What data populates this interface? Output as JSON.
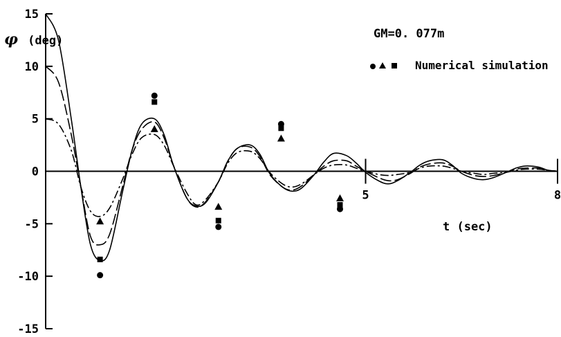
{
  "chart_data": {
    "type": "line",
    "title": "",
    "annotation": "GM=0. 077m",
    "legend_label": "Numerical simulation",
    "legend_position": "top-right",
    "ylabel_symbol": "φ",
    "ylabel_unit": "(deg)",
    "xlabel": "t (sec)",
    "xlim": [
      0,
      8
    ],
    "ylim": [
      -15,
      15
    ],
    "x_tick_labels": [
      {
        "value": 5,
        "label": "5"
      },
      {
        "value": 8,
        "label": "8"
      }
    ],
    "y_tick_labels": [
      {
        "value": 15,
        "label": "15"
      },
      {
        "value": 10,
        "label": "10"
      },
      {
        "value": 5,
        "label": "5"
      },
      {
        "value": 0,
        "label": "0"
      },
      {
        "value": -5,
        "label": "-5"
      },
      {
        "value": -10,
        "label": "-10"
      },
      {
        "value": -15,
        "label": "-15"
      }
    ],
    "grid": false,
    "series": [
      {
        "style": "solid",
        "x": [
          0,
          0.2,
          0.4,
          0.55,
          0.7,
          0.85,
          1.0,
          1.2,
          1.35,
          1.5,
          1.7,
          1.85,
          2.0,
          2.2,
          2.35,
          2.5,
          2.7,
          2.85,
          3.0,
          3.2,
          3.35,
          3.5,
          3.7,
          3.85,
          4.0,
          4.2,
          4.35,
          4.5,
          4.7,
          4.85,
          5.0,
          5.2,
          5.35,
          5.5,
          5.7,
          5.85,
          6.0,
          6.2,
          6.35,
          6.5,
          6.7,
          6.85,
          7.0,
          7.2,
          7.35,
          7.5,
          7.7,
          7.85,
          8.0
        ],
        "y": [
          15,
          12.5,
          5,
          -1.5,
          -7,
          -8.5,
          -7.5,
          -2,
          2,
          4.5,
          5,
          3.5,
          0.5,
          -2.5,
          -3.3,
          -3,
          -1,
          1,
          2.2,
          2.5,
          1.6,
          -0.2,
          -1.5,
          -1.9,
          -1.6,
          -0.3,
          0.9,
          1.7,
          1.5,
          0.8,
          -0.1,
          -0.9,
          -1.2,
          -0.9,
          -0.1,
          0.6,
          1.0,
          1.1,
          0.6,
          -0.2,
          -0.7,
          -0.8,
          -0.6,
          -0.1,
          0.3,
          0.5,
          0.4,
          0.1,
          0
        ]
      },
      {
        "style": "long-dash",
        "x": [
          0,
          0.2,
          0.4,
          0.55,
          0.7,
          0.85,
          1.0,
          1.2,
          1.35,
          1.5,
          1.7,
          1.85,
          2.0,
          2.2,
          2.35,
          2.5,
          2.7,
          2.85,
          3.0,
          3.2,
          3.35,
          3.5,
          3.7,
          3.85,
          4.0,
          4.2,
          4.35,
          4.5,
          4.7,
          4.85,
          5.0,
          5.2,
          5.35,
          5.5,
          5.7,
          5.85,
          6.0,
          6.2,
          6.35,
          6.5,
          6.7,
          6.85,
          7.0,
          7.2,
          7.35,
          7.5,
          7.7,
          7.85,
          8.0
        ],
        "y": [
          10,
          8.5,
          3.5,
          -1.5,
          -6.2,
          -7,
          -6,
          -1.5,
          2,
          4,
          4.7,
          3.2,
          0.5,
          -2.5,
          -3.4,
          -2.9,
          -1,
          1,
          2.2,
          2.3,
          1.4,
          -0.3,
          -1.5,
          -1.8,
          -1.4,
          -0.3,
          0.5,
          1.0,
          1.0,
          0.5,
          0,
          -0.6,
          -0.9,
          -0.8,
          -0.2,
          0.4,
          0.7,
          0.8,
          0.5,
          0,
          -0.4,
          -0.5,
          -0.4,
          -0.1,
          0.2,
          0.3,
          0.3,
          0.1,
          0
        ]
      },
      {
        "style": "dash-dot",
        "x": [
          0,
          0.2,
          0.4,
          0.55,
          0.7,
          0.85,
          1.0,
          1.2,
          1.35,
          1.5,
          1.7,
          1.85,
          2.0,
          2.2,
          2.35,
          2.5,
          2.7,
          2.85,
          3.0,
          3.2,
          3.35,
          3.5,
          3.7,
          3.85,
          4.0,
          4.2,
          4.35,
          4.5,
          4.7,
          4.85,
          5.0,
          5.2,
          5.35,
          5.5,
          5.7,
          5.85,
          6.0,
          6.2,
          6.35,
          6.5,
          6.7,
          6.85,
          7.0,
          7.2,
          7.35,
          7.5,
          7.7,
          7.85,
          8.0
        ],
        "y": [
          5,
          4.5,
          2,
          -1.5,
          -3.8,
          -4.3,
          -3.5,
          -0.8,
          1.6,
          3.2,
          3.5,
          2.5,
          0.5,
          -2,
          -3.2,
          -2.7,
          -1,
          0.8,
          1.8,
          1.9,
          1.2,
          -0.1,
          -1.2,
          -1.5,
          -1.2,
          -0.3,
          0.3,
          0.6,
          0.6,
          0.3,
          0,
          -0.3,
          -0.4,
          -0.3,
          -0.1,
          0.3,
          0.5,
          0.5,
          0.3,
          0,
          -0.2,
          -0.3,
          -0.2,
          -0.1,
          0.1,
          0.2,
          0.2,
          0.1,
          0
        ]
      }
    ],
    "markers": [
      {
        "shape": "circle",
        "x": [
          0.85,
          1.7,
          2.7,
          3.68,
          4.6
        ],
        "y": [
          -9.9,
          7.2,
          -5.3,
          4.5,
          -3.6
        ]
      },
      {
        "shape": "triangle",
        "x": [
          0.85,
          1.7,
          2.7,
          3.68,
          4.6
        ],
        "y": [
          -4.8,
          4,
          -3.4,
          3.1,
          -2.6
        ]
      },
      {
        "shape": "square",
        "x": [
          0.85,
          1.7,
          2.7,
          3.68,
          4.6
        ],
        "y": [
          -8.4,
          6.6,
          -4.7,
          4.1,
          -3.2
        ]
      }
    ]
  }
}
